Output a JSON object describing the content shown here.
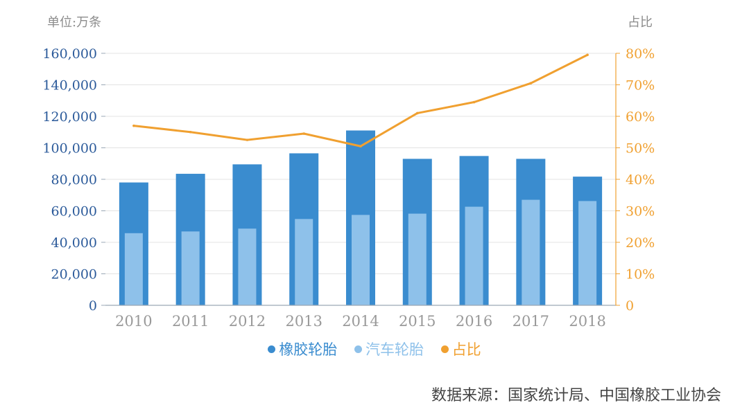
{
  "left_unit_label": "单位:万条",
  "right_unit_label": "占比",
  "legend": [
    {
      "label": "橡胶轮胎",
      "color": "#3a8ccf"
    },
    {
      "label": "汽车轮胎",
      "color": "#8ec1ea"
    },
    {
      "label": "占比",
      "color": "#f0a030"
    }
  ],
  "source": "数据来源：国家统计局、中国橡胶工业协会",
  "chart_data": {
    "type": "bar",
    "categories": [
      "2010",
      "2011",
      "2012",
      "2013",
      "2014",
      "2015",
      "2016",
      "2017",
      "2018"
    ],
    "series": [
      {
        "name": "橡胶轮胎",
        "type": "bar",
        "axis": "left",
        "color": "#3a8ccf",
        "values": [
          78000,
          83500,
          89500,
          96500,
          111000,
          93000,
          94800,
          93000,
          81700
        ]
      },
      {
        "name": "汽车轮胎",
        "type": "bar",
        "axis": "left",
        "color": "#8ec1ea",
        "values": [
          45800,
          46900,
          48700,
          54800,
          57400,
          58200,
          62600,
          67000,
          66200
        ]
      },
      {
        "name": "占比",
        "type": "line",
        "axis": "right",
        "color": "#f0a030",
        "values": [
          57,
          55,
          52.5,
          54.5,
          50.5,
          61,
          64.5,
          70.5,
          79.5
        ]
      }
    ],
    "ylim_left": [
      0,
      160000
    ],
    "ylim_right": [
      0,
      80
    ],
    "left_ticks": [
      "0",
      "20,000",
      "40,000",
      "60,000",
      "80,000",
      "100,000",
      "120,000",
      "140,000",
      "160,000"
    ],
    "right_ticks": [
      "0",
      "10%",
      "20%",
      "30%",
      "40%",
      "50%",
      "60%",
      "70%",
      "80%"
    ],
    "left_tick_color": "#2b5a9a",
    "right_tick_color": "#f0a030",
    "x_tick_color": "#999999",
    "grid": true,
    "legend_position": "bottom"
  }
}
